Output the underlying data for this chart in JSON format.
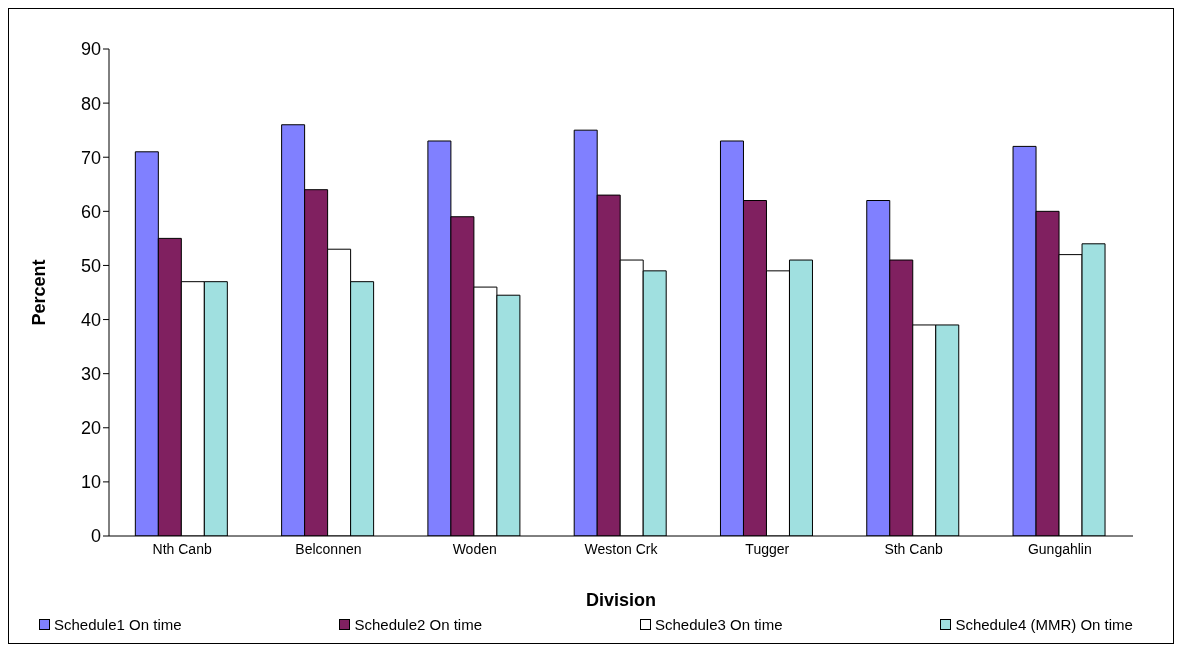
{
  "chart_data": {
    "type": "bar",
    "xlabel": "Division",
    "ylabel": "Percent",
    "categories": [
      "Nth Canb",
      "Belconnen",
      "Woden",
      "Weston Crk",
      "Tugger",
      "Sth Canb",
      "Gungahlin"
    ],
    "series": [
      {
        "name": "Schedule1 On time",
        "color": "#8080ff",
        "values": [
          71,
          76,
          73,
          75,
          73,
          62,
          72
        ]
      },
      {
        "name": "Schedule2 On time",
        "color": "#802060",
        "values": [
          55,
          64,
          59,
          63,
          62,
          51,
          60
        ]
      },
      {
        "name": "Schedule3 On time",
        "color": "#ffffff",
        "values": [
          47,
          53,
          46,
          51,
          49,
          39,
          52
        ]
      },
      {
        "name": "Schedule4 (MMR) On time",
        "color": "#a0e0e0",
        "values": [
          47,
          47,
          44.5,
          49,
          51,
          39,
          54
        ]
      }
    ],
    "ylim": [
      0,
      90
    ],
    "yticks": [
      0,
      10,
      20,
      30,
      40,
      50,
      60,
      70,
      80,
      90
    ],
    "grid": false,
    "legend": "bottom"
  }
}
